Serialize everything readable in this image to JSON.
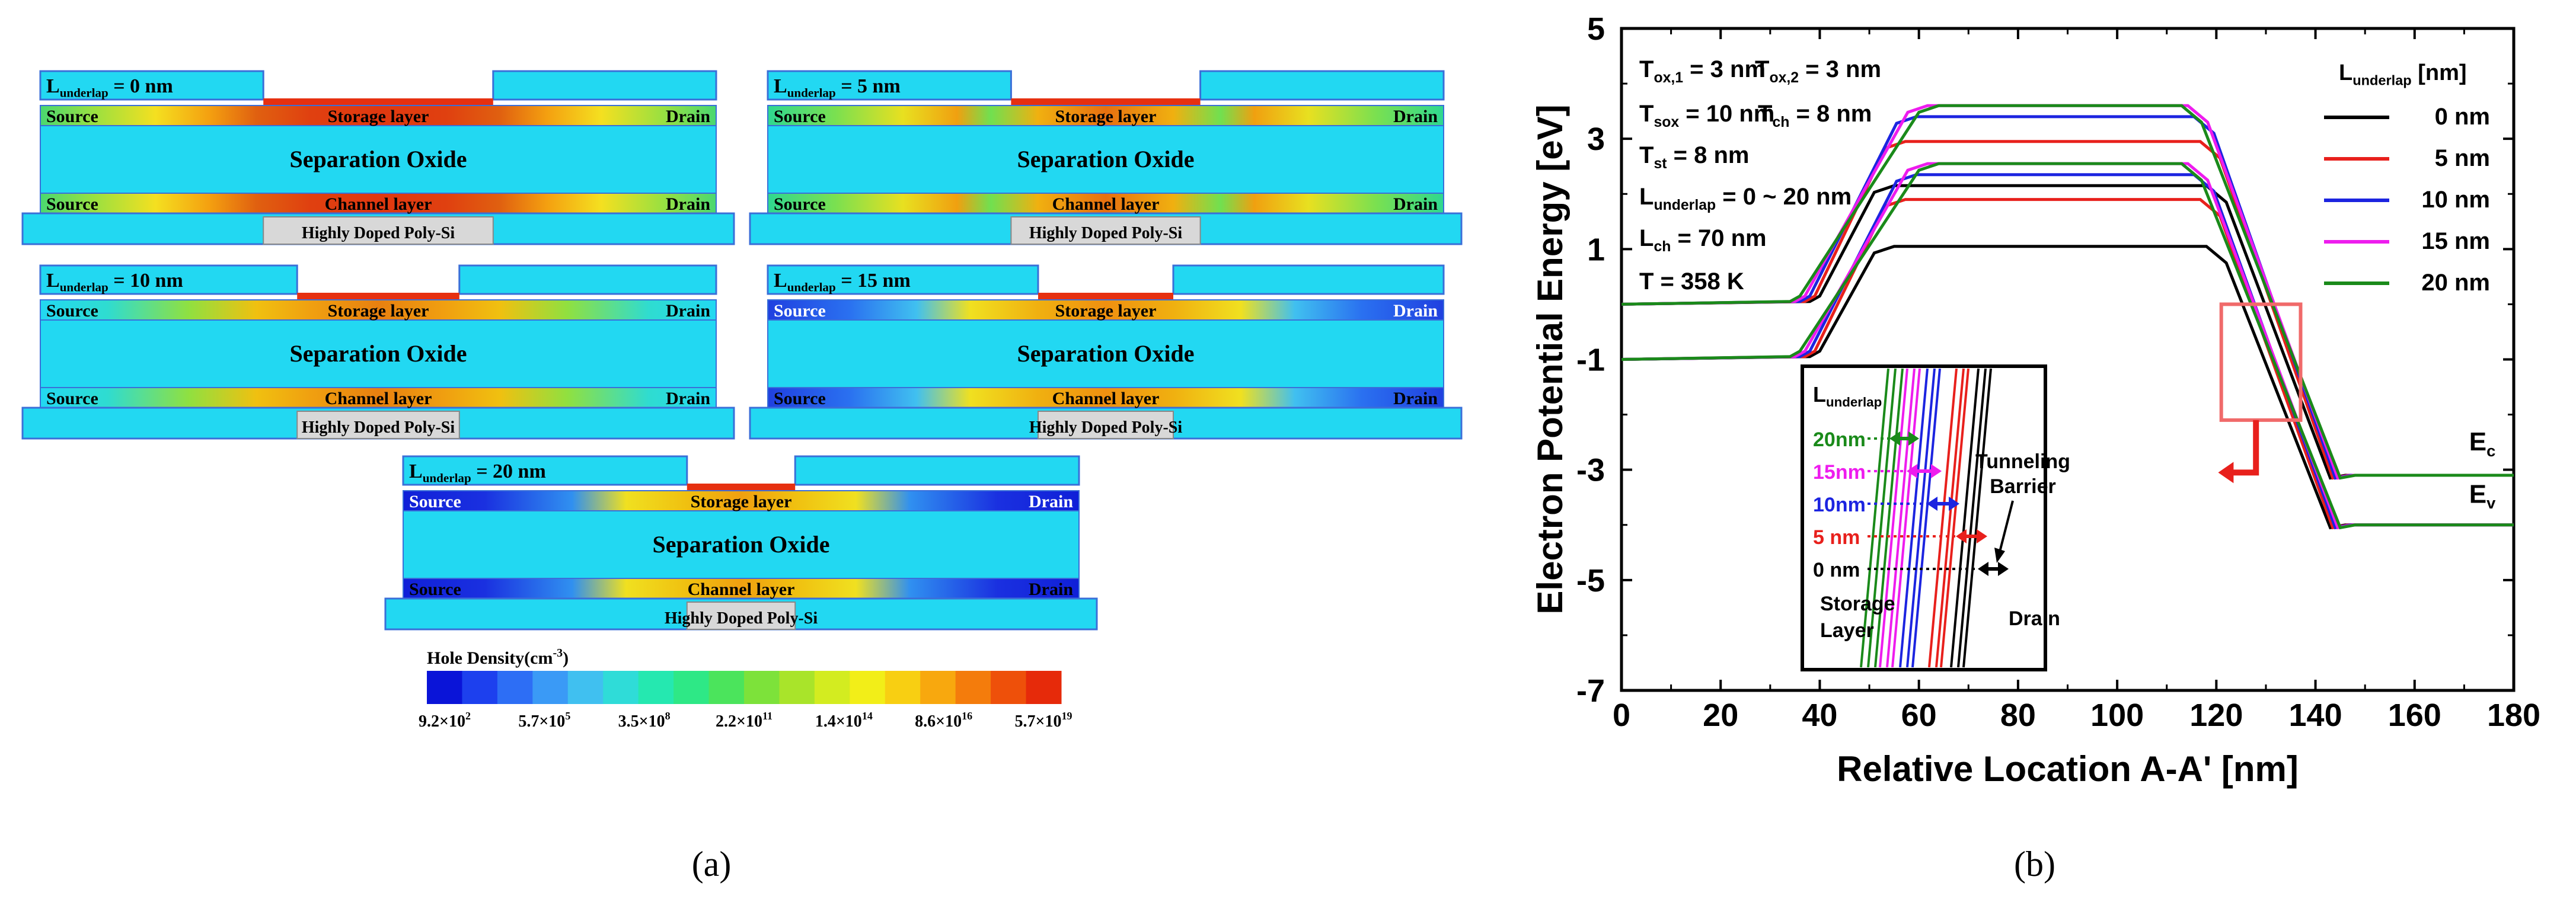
{
  "panel_a": {
    "caption": "(a)",
    "devices": [
      {
        "title_main": "L",
        "title_sub": "underlap",
        "title_rest": " = 0 nm",
        "source": "Source",
        "drain": "Drain",
        "storage": "Storage layer",
        "oxide": "Separation Oxide",
        "channel": "Channel layer",
        "gate": "Highly Doped Poly-Si",
        "underlap_nm": 0
      },
      {
        "title_main": "L",
        "title_sub": "underlap",
        "title_rest": " = 5 nm",
        "source": "Source",
        "drain": "Drain",
        "storage": "Storage layer",
        "oxide": "Separation Oxide",
        "channel": "Channel layer",
        "gate": "Highly Doped Poly-Si",
        "underlap_nm": 5
      },
      {
        "title_main": "L",
        "title_sub": "underlap",
        "title_rest": " = 10 nm",
        "source": "Source",
        "drain": "Drain",
        "storage": "Storage layer",
        "oxide": "Separation Oxide",
        "channel": "Channel layer",
        "gate": "Highly Doped Poly-Si",
        "underlap_nm": 10
      },
      {
        "title_main": "L",
        "title_sub": "underlap",
        "title_rest": " = 15 nm",
        "source": "Source",
        "drain": "Drain",
        "storage": "Storage layer",
        "oxide": "Separation Oxide",
        "channel": "Channel layer",
        "gate": "Highly Doped Poly-Si",
        "underlap_nm": 15
      },
      {
        "title_main": "L",
        "title_sub": "underlap",
        "title_rest": " = 20 nm",
        "source": "Source",
        "drain": "Drain",
        "storage": "Storage layer",
        "oxide": "Separation Oxide",
        "channel": "Channel layer",
        "gate": "Highly Doped Poly-Si",
        "underlap_nm": 20
      }
    ],
    "colorbar": {
      "title": "Hole Density(cm",
      "title_sup": "-3",
      "title_end": ")",
      "ticks": [
        {
          "m": "9.2×10",
          "e": "2"
        },
        {
          "m": "5.7×10",
          "e": "5"
        },
        {
          "m": "3.5×10",
          "e": "8"
        },
        {
          "m": "2.2×10",
          "e": "11"
        },
        {
          "m": "1.4×10",
          "e": "14"
        },
        {
          "m": "8.6×10",
          "e": "16"
        },
        {
          "m": "5.7×10",
          "e": "19"
        }
      ],
      "colors": [
        "#0a14d8",
        "#1d40ee",
        "#2d6ef5",
        "#3a9af6",
        "#40c0f0",
        "#2fdcd8",
        "#25e8b0",
        "#2ee886",
        "#4be45c",
        "#7de23a",
        "#a9e42a",
        "#d3ec20",
        "#f2ee18",
        "#f8cf12",
        "#f8a80e",
        "#f47c0c",
        "#ee500a",
        "#e62a0a"
      ]
    },
    "colors": {
      "oxide": "#22d8f2",
      "oxide_edge": "#3a6fd8",
      "gate": "#d8d8d8",
      "storage_red": "#e63010",
      "hot": "#f0d020"
    }
  },
  "panel_b": {
    "caption": "(b)",
    "chart_data": {
      "type": "line",
      "xlabel": "Relative Location A-A' [nm]",
      "ylabel": "Electron Potential Energy [eV]",
      "xlim": [
        0,
        180
      ],
      "ylim": [
        -7,
        5
      ],
      "xticks": [
        "0",
        "20",
        "40",
        "60",
        "80",
        "100",
        "120",
        "140",
        "160",
        "180"
      ],
      "xtick_values": [
        0,
        20,
        40,
        60,
        80,
        100,
        120,
        140,
        160,
        180
      ],
      "yticks": [
        "5",
        "3",
        "1",
        "-1",
        "-3",
        "-5",
        "-7"
      ],
      "ytick_values": [
        5,
        3,
        1,
        -1,
        -3,
        -5,
        -7
      ],
      "legend_title_main": "L",
      "legend_title_sub": "underlap",
      "legend_title_rest": " [nm]",
      "series": [
        {
          "name": "0 nm",
          "color": "#000000",
          "underlap": 0,
          "ec_peak": 2.15,
          "ev_peak": 1.05
        },
        {
          "name": "5 nm",
          "color": "#e8201c",
          "underlap": 5,
          "ec_peak": 2.95,
          "ev_peak": 1.9
        },
        {
          "name": "10 nm",
          "color": "#1c24e0",
          "underlap": 10,
          "ec_peak": 3.4,
          "ev_peak": 2.35
        },
        {
          "name": "15 nm",
          "color": "#ee1cee",
          "underlap": 15,
          "ec_peak": 3.6,
          "ev_peak": 2.55
        },
        {
          "name": "20 nm",
          "color": "#1a8a1a",
          "underlap": 20,
          "ec_peak": 3.6,
          "ev_peak": 2.55
        }
      ],
      "ec_left": 0,
      "ev_left": -1,
      "ec_right": -3.1,
      "ev_right": -4.0,
      "params": [
        {
          "key": "ox1",
          "text": "T",
          "sub": "ox,1",
          "val": "= 3 nm"
        },
        {
          "key": "ox2",
          "text": "T",
          "sub": "ox,2",
          "val": "= 3 nm"
        },
        {
          "key": "sox",
          "text": "T",
          "sub": "sox",
          "val": "= 10 nm"
        },
        {
          "key": "ch",
          "text": "T",
          "sub": "ch",
          "val": "= 8 nm"
        },
        {
          "key": "st",
          "text": "T",
          "sub": "st",
          "val": "= 8 nm"
        },
        {
          "key": "lun",
          "text": "L",
          "sub": "underlap",
          "val": "= 0 ~ 20 nm"
        },
        {
          "key": "lch",
          "text": "L",
          "sub": "ch",
          "val": "= 70 nm"
        },
        {
          "key": "temp",
          "text": "T = 358 K",
          "sub": "",
          "val": ""
        }
      ],
      "band_labels": {
        "ec_main": "E",
        "ec_sub": "c",
        "ev_main": "E",
        "ev_sub": "v"
      },
      "inset": {
        "title_main": "L",
        "title_sub": "underlap",
        "rows": [
          {
            "label": "20nm",
            "color": "#1a8a1a"
          },
          {
            "label": "15nm",
            "color": "#ee1cee"
          },
          {
            "label": "10nm",
            "color": "#1c24e0"
          },
          {
            "label": "5 nm",
            "color": "#e8201c"
          },
          {
            "label": "0 nm",
            "color": "#000000"
          }
        ],
        "barrier": "Tunneling Barrier",
        "barrier_line1": "Tunneling",
        "barrier_line2": "Barrier",
        "storage_line1": "Storage",
        "storage_line2": "Layer",
        "drain": "Drain"
      }
    }
  }
}
